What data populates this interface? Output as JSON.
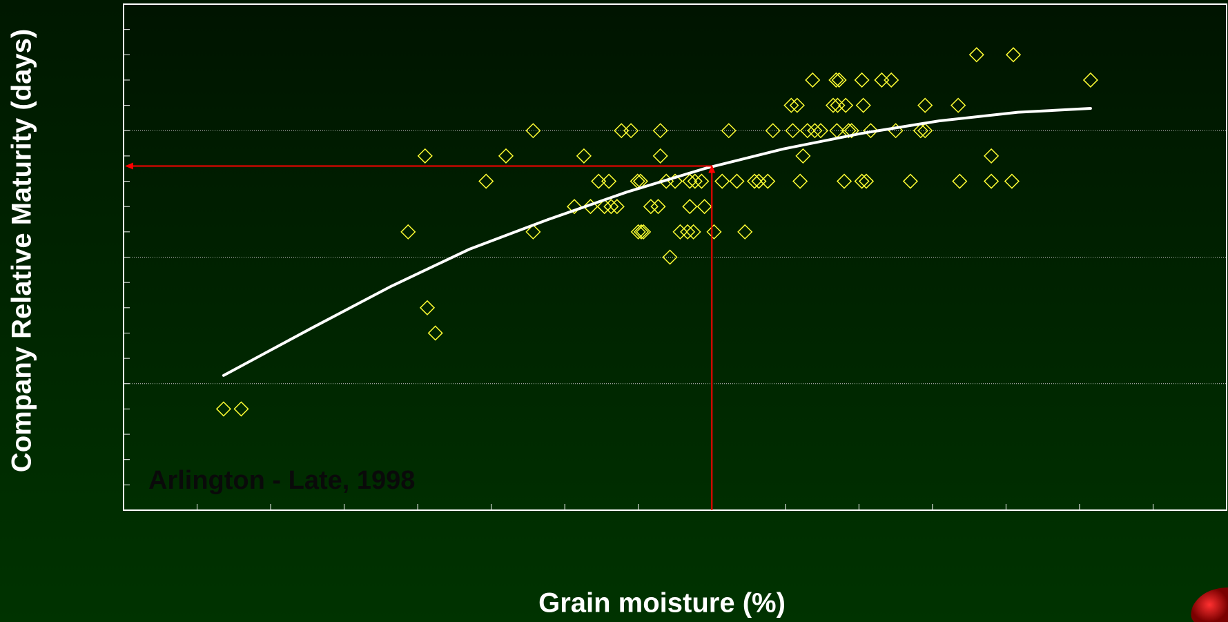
{
  "chart_data": {
    "type": "scatter",
    "x_label": "Grain moisture (%)",
    "y_label": "Company Relative Maturity (days)",
    "annotation": "Arlington - Late, 1998",
    "xlim": [
      15,
      30
    ],
    "ylim": [
      90,
      130
    ],
    "xticks": [
      16,
      17,
      18,
      19,
      20,
      21,
      22,
      23,
      24,
      25,
      26,
      27,
      28,
      29
    ],
    "yticks": [
      92,
      94,
      96,
      98,
      100,
      102,
      104,
      106,
      108,
      110,
      112,
      114,
      116,
      118,
      120,
      122,
      124,
      126,
      128
    ],
    "ygrid": [
      100,
      110,
      120
    ],
    "color": "#ffff33",
    "x": [
      16.36,
      16.6,
      18.87,
      19.1,
      19.13,
      19.24,
      19.93,
      20.2,
      20.57,
      20.57,
      21.13,
      21.26,
      21.35,
      21.46,
      21.6,
      21.54,
      21.63,
      21.71,
      21.77,
      21.9,
      21.99,
      22.03,
      22.0,
      22.04,
      22.07,
      22.17,
      22.27,
      22.3,
      22.3,
      22.38,
      22.5,
      22.43,
      22.57,
      22.67,
      22.75,
      22.7,
      22.9,
      22.7,
      22.77,
      22.86,
      23.03,
      23.14,
      23.34,
      23.23,
      23.45,
      23.58,
      23.64,
      23.76,
      23.83,
      24.08,
      24.16,
      24.1,
      24.2,
      24.24,
      24.3,
      24.4,
      24.48,
      24.37,
      24.65,
      24.71,
      24.82,
      24.69,
      24.73,
      24.7,
      24.8,
      24.86,
      24.9,
      25.04,
      25.06,
      25.04,
      25.1,
      25.16,
      25.31,
      25.44,
      25.5,
      25.7,
      25.84,
      25.9,
      25.9,
      26.35,
      26.37,
      26.6,
      26.8,
      26.8,
      27.08,
      27.1,
      28.15
    ],
    "values": [
      98,
      98,
      112,
      118,
      106,
      104,
      116,
      118,
      120,
      112,
      114,
      118,
      114,
      116,
      116,
      114,
      114,
      114,
      120,
      120,
      116,
      116,
      112,
      112,
      112,
      114,
      114,
      120,
      118,
      116,
      116,
      110,
      112,
      112,
      112,
      114,
      114,
      116,
      116,
      116,
      112,
      116,
      116,
      120,
      112,
      116,
      116,
      116,
      120,
      122,
      122,
      120,
      116,
      118,
      120,
      120,
      120,
      124,
      122,
      122,
      122,
      124,
      124,
      120,
      116,
      120,
      120,
      124,
      122,
      116,
      116,
      120,
      124,
      124,
      120,
      116,
      120,
      120,
      122,
      122,
      116,
      126,
      118,
      116,
      116,
      126,
      124
    ],
    "fit": {
      "color": "#ffffff",
      "x": [
        16.36,
        17.57,
        18.64,
        19.7,
        20.77,
        21.84,
        22.9,
        23.97,
        25.03,
        26.09,
        27.16,
        28.15
      ],
      "values": [
        100.65,
        104.43,
        107.7,
        110.62,
        112.97,
        115.14,
        117.0,
        118.55,
        119.78,
        120.77,
        121.45,
        121.76
      ]
    },
    "reference": {
      "x": 23,
      "y": 117.2,
      "color": "#ff0000"
    }
  }
}
